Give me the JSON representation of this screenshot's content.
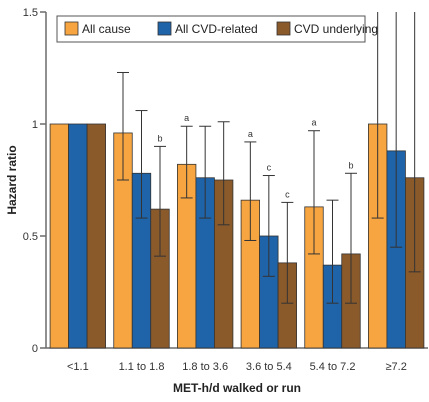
{
  "chart_data": {
    "type": "bar",
    "xlabel": "MET-h/d walked or run",
    "ylabel": "Hazard ratio",
    "ylim": [
      0,
      1.5
    ],
    "yticks": [
      "0",
      "0.5",
      "1",
      "1.5"
    ],
    "grid": false,
    "legend_position": "top",
    "categories": [
      "<1.1",
      "1.1 to 1.8",
      "1.8 to 3.6",
      "3.6 to 5.4",
      "5.4 to 7.2",
      "≥7.2"
    ],
    "series": [
      {
        "name": "All cause",
        "color": "#f7a541",
        "values": [
          1.0,
          0.96,
          0.82,
          0.66,
          0.63,
          1.0
        ],
        "ci_low": [
          null,
          0.75,
          0.67,
          0.48,
          0.42,
          0.58
        ],
        "ci_high": [
          null,
          1.23,
          0.99,
          0.92,
          0.97,
          1.5
        ],
        "significance": [
          "",
          "",
          "a",
          "a",
          "a",
          ""
        ]
      },
      {
        "name": "All CVD-related",
        "color": "#1f63a8",
        "values": [
          1.0,
          0.78,
          0.76,
          0.5,
          0.37,
          0.88
        ],
        "ci_low": [
          null,
          0.58,
          0.58,
          0.32,
          0.2,
          0.45
        ],
        "ci_high": [
          null,
          1.06,
          0.99,
          0.77,
          0.66,
          1.5
        ],
        "significance": [
          "",
          "",
          "",
          "c",
          "",
          ""
        ]
      },
      {
        "name": "CVD underlying",
        "color": "#8b5a2b",
        "values": [
          1.0,
          0.62,
          0.75,
          0.38,
          0.42,
          0.76
        ],
        "ci_low": [
          null,
          0.41,
          0.55,
          0.2,
          0.2,
          0.34
        ],
        "ci_high": [
          null,
          0.9,
          1.01,
          0.65,
          0.78,
          1.5
        ],
        "significance": [
          "",
          "b",
          "",
          "c",
          "b",
          ""
        ]
      }
    ]
  }
}
